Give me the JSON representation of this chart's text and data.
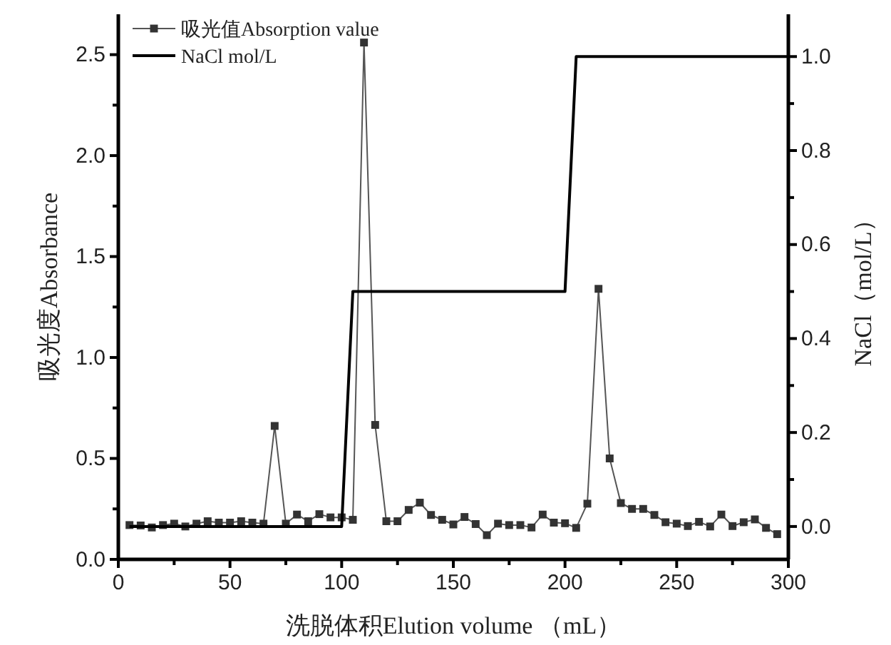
{
  "chart_data": {
    "type": "line",
    "xlabel": "洗脱体积Elution volume （mL）",
    "ylabel": "吸光度Absorbance",
    "y2label": "NaCl（mol/L）",
    "xlim": [
      0,
      300
    ],
    "xticks": [
      0,
      {
        "value": 25,
        "label": null
      },
      50,
      {
        "value": 75,
        "label": null
      },
      100,
      {
        "value": 125,
        "label": null
      },
      150,
      {
        "value": 175,
        "label": null
      },
      200,
      {
        "value": 225,
        "label": null
      },
      250,
      {
        "value": 275,
        "label": null
      },
      300
    ],
    "ylim": [
      0,
      2.7
    ],
    "yticks": [
      {
        "value": 0,
        "label": "0.0"
      },
      {
        "value": 0.25,
        "label": null
      },
      0.5,
      {
        "value": 0.75,
        "label": null
      },
      {
        "value": 1,
        "label": "1.0"
      },
      {
        "value": 1.25,
        "label": null
      },
      1.5,
      {
        "value": 1.75,
        "label": null
      },
      {
        "value": 2,
        "label": "2.0"
      },
      {
        "value": 2.25,
        "label": null
      },
      2.5
    ],
    "y2lim": [
      -0.07,
      1.09
    ],
    "y2ticks": [
      {
        "value": 0,
        "label": "0.0"
      },
      {
        "value": 0.1,
        "label": null
      },
      0.2,
      {
        "value": 0.3,
        "label": null
      },
      0.4,
      {
        "value": 0.5,
        "label": null
      },
      0.6,
      {
        "value": 0.7,
        "label": null
      },
      0.8,
      {
        "value": 0.9,
        "label": null
      },
      {
        "value": 1,
        "label": "1.0"
      }
    ],
    "grid": false,
    "legend": "top left",
    "series": [
      {
        "name": "吸光值Absorption value",
        "color": "#555555",
        "marker": "square",
        "x": [
          5,
          10,
          15,
          20,
          25,
          30,
          35,
          40,
          45,
          50,
          55,
          60,
          65,
          70,
          75,
          80,
          85,
          90,
          95,
          100,
          105,
          110,
          115,
          120,
          125,
          130,
          135,
          140,
          145,
          150,
          155,
          160,
          165,
          170,
          175,
          180,
          185,
          190,
          195,
          200,
          205,
          210,
          215,
          220,
          225,
          230,
          235,
          240,
          245,
          250,
          255,
          260,
          265,
          270,
          275,
          280,
          285,
          290,
          295
        ],
        "values": [
          0.17,
          0.168,
          0.158,
          0.17,
          0.177,
          0.163,
          0.177,
          0.189,
          0.182,
          0.182,
          0.189,
          0.182,
          0.177,
          0.661,
          0.177,
          0.222,
          0.189,
          0.224,
          0.208,
          0.208,
          0.196,
          2.56,
          0.666,
          0.189,
          0.189,
          0.245,
          0.281,
          0.22,
          0.196,
          0.173,
          0.21,
          0.175,
          0.12,
          0.177,
          0.17,
          0.17,
          0.158,
          0.222,
          0.182,
          0.179,
          0.156,
          0.276,
          1.34,
          0.5,
          0.279,
          0.25,
          0.25,
          0.22,
          0.184,
          0.177,
          0.165,
          0.186,
          0.163,
          0.222,
          0.165,
          0.184,
          0.198,
          0.156,
          0.125
        ]
      },
      {
        "name": "NaCl mol/L",
        "color": "#000000",
        "marker": "none",
        "axis": "y2",
        "x": [
          5,
          100,
          105,
          200,
          205,
          300
        ],
        "values": [
          0,
          0,
          0.5,
          0.5,
          1,
          1
        ]
      }
    ]
  }
}
